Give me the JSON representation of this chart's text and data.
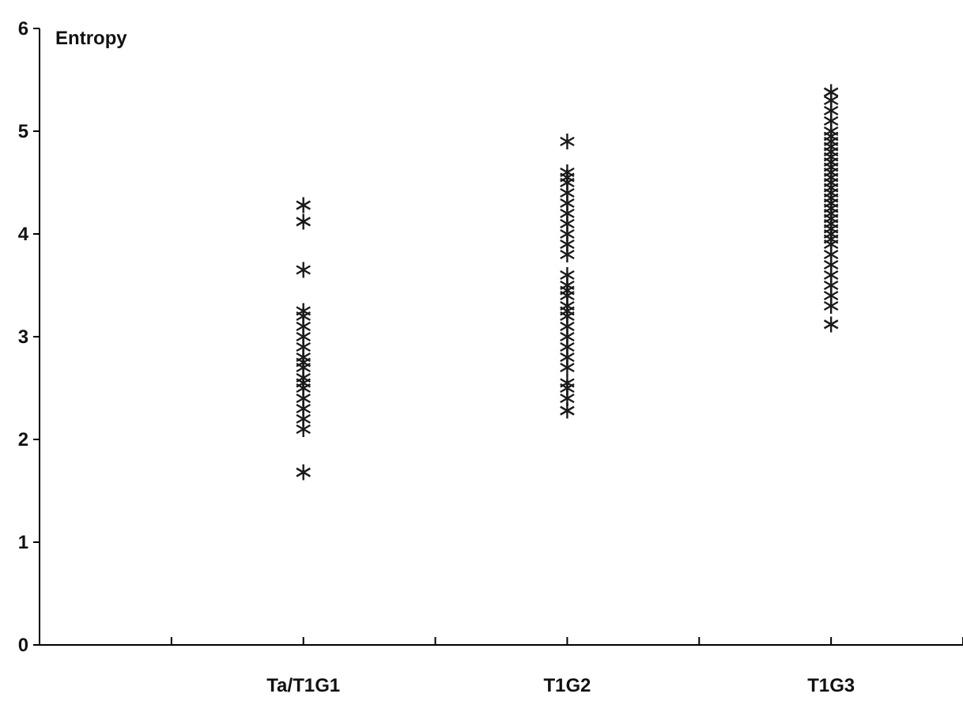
{
  "chart_data": {
    "type": "scatter",
    "ylabel": "Entropy",
    "categories": [
      "Ta/T1G1",
      "T1G2",
      "T1G3"
    ],
    "ylim": [
      0,
      6
    ],
    "yticks": [
      0,
      1,
      2,
      3,
      4,
      5,
      6
    ],
    "marker": "cross",
    "series": [
      {
        "color": "#1a1a1a",
        "x": [
          "Ta/T1G1",
          "Ta/T1G1",
          "Ta/T1G1",
          "Ta/T1G1",
          "Ta/T1G1",
          "Ta/T1G1",
          "Ta/T1G1",
          "Ta/T1G1",
          "Ta/T1G1",
          "Ta/T1G1",
          "Ta/T1G1",
          "Ta/T1G1",
          "Ta/T1G1",
          "Ta/T1G1",
          "Ta/T1G1",
          "Ta/T1G1",
          "Ta/T1G1",
          "Ta/T1G1",
          "Ta/T1G1",
          "T1G2",
          "T1G2",
          "T1G2",
          "T1G2",
          "T1G2",
          "T1G2",
          "T1G2",
          "T1G2",
          "T1G2",
          "T1G2",
          "T1G2",
          "T1G2",
          "T1G2",
          "T1G2",
          "T1G2",
          "T1G2",
          "T1G2",
          "T1G2",
          "T1G2",
          "T1G2",
          "T1G2",
          "T1G2",
          "T1G2",
          "T1G2",
          "T1G2",
          "T1G2",
          "T1G2",
          "T1G3",
          "T1G3",
          "T1G3",
          "T1G3",
          "T1G3",
          "T1G3",
          "T1G3",
          "T1G3",
          "T1G3",
          "T1G3",
          "T1G3",
          "T1G3",
          "T1G3",
          "T1G3",
          "T1G3",
          "T1G3",
          "T1G3",
          "T1G3",
          "T1G3",
          "T1G3",
          "T1G3",
          "T1G3",
          "T1G3",
          "T1G3",
          "T1G3",
          "T1G3",
          "T1G3",
          "T1G3",
          "T1G3",
          "T1G3",
          "T1G3",
          "T1G3",
          "T1G3",
          "T1G3"
        ],
        "values": [
          4.28,
          4.12,
          3.65,
          3.25,
          3.2,
          3.1,
          3.0,
          2.9,
          2.8,
          2.75,
          2.7,
          2.6,
          2.55,
          2.5,
          2.4,
          2.3,
          2.2,
          2.1,
          1.68,
          4.9,
          4.6,
          4.55,
          4.5,
          4.4,
          4.3,
          4.2,
          4.1,
          4.0,
          3.9,
          3.8,
          3.6,
          3.5,
          3.45,
          3.4,
          3.3,
          3.25,
          3.2,
          3.1,
          3.0,
          2.9,
          2.8,
          2.7,
          2.55,
          2.5,
          2.4,
          2.28,
          5.38,
          5.3,
          5.2,
          5.1,
          5.0,
          4.95,
          4.9,
          4.85,
          4.8,
          4.75,
          4.7,
          4.65,
          4.6,
          4.55,
          4.5,
          4.45,
          4.4,
          4.35,
          4.3,
          4.25,
          4.2,
          4.15,
          4.1,
          4.05,
          4.0,
          3.95,
          3.9,
          3.8,
          3.7,
          3.6,
          3.5,
          3.4,
          3.3,
          3.12
        ]
      }
    ]
  }
}
